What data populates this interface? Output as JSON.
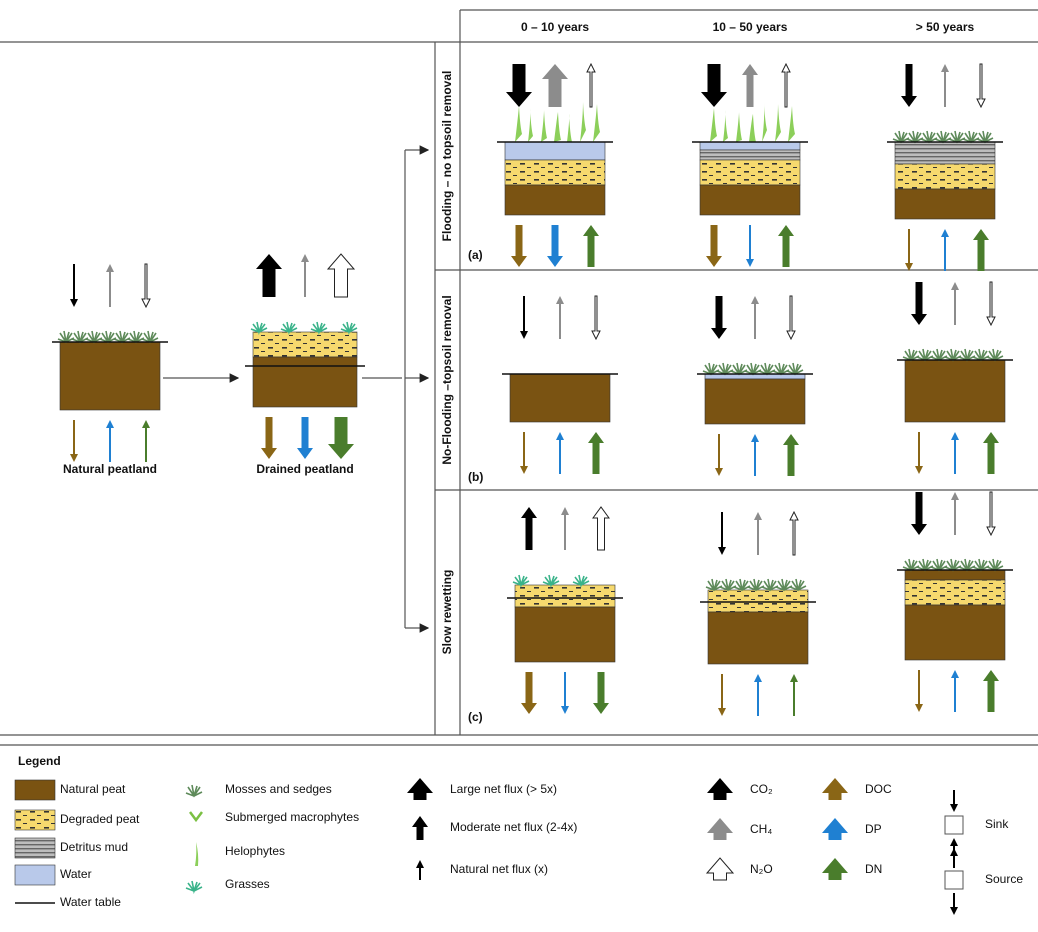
{
  "header": {
    "columns": [
      "0 – 10 years",
      "10 – 50 years",
      "> 50 years"
    ]
  },
  "rows": [
    {
      "label": "Flooding – no topsoil removal",
      "panel": "(a)"
    },
    {
      "label": "No-Flooding –topsoil removal",
      "panel": "(b)"
    },
    {
      "label": "Slow rewetting",
      "panel": "(c)"
    }
  ],
  "stages": [
    "Natural peatland",
    "Drained peatland"
  ],
  "legend": {
    "title": "Legend",
    "materials": [
      "Natural peat",
      "Degraded peat",
      "Detritus mud",
      "Water",
      "Water table"
    ],
    "vegetation": [
      "Mosses and sedges",
      "Submerged macrophytes",
      "Helophytes",
      "Grasses"
    ],
    "flux_sizes": [
      "Large net flux (> 5x)",
      "Moderate net flux (2-4x)",
      "Natural net flux (x)"
    ],
    "gases": [
      "CO₂",
      "CH₄",
      "N₂O"
    ],
    "nutrients": [
      "DOC",
      "DP",
      "DN"
    ],
    "direction": [
      "Sink",
      "Source"
    ]
  }
}
